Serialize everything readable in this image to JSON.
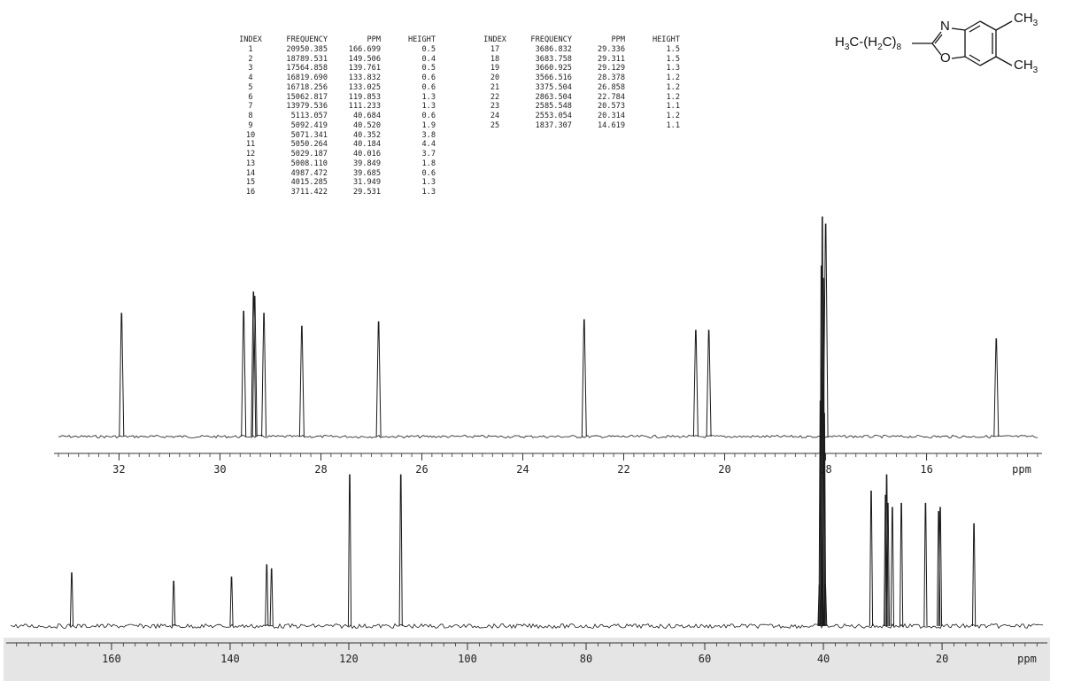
{
  "peak_table": {
    "headers": {
      "index": "INDEX",
      "frequency": "FREQUENCY",
      "ppm": "PPM",
      "height": "HEIGHT"
    },
    "left_rows": [
      {
        "index": "1",
        "frequency": "20950.385",
        "ppm": "166.699",
        "height": "0.5"
      },
      {
        "index": "2",
        "frequency": "18789.531",
        "ppm": "149.506",
        "height": "0.4"
      },
      {
        "index": "3",
        "frequency": "17564.858",
        "ppm": "139.761",
        "height": "0.5"
      },
      {
        "index": "4",
        "frequency": "16819.690",
        "ppm": "133.832",
        "height": "0.6"
      },
      {
        "index": "5",
        "frequency": "16718.256",
        "ppm": "133.025",
        "height": "0.6"
      },
      {
        "index": "6",
        "frequency": "15062.817",
        "ppm": "119.853",
        "height": "1.3"
      },
      {
        "index": "7",
        "frequency": "13979.536",
        "ppm": "111.233",
        "height": "1.3"
      },
      {
        "index": "8",
        "frequency": "5113.057",
        "ppm": "40.684",
        "height": "0.6"
      },
      {
        "index": "9",
        "frequency": "5092.419",
        "ppm": "40.520",
        "height": "1.9"
      },
      {
        "index": "10",
        "frequency": "5071.341",
        "ppm": "40.352",
        "height": "3.8"
      },
      {
        "index": "11",
        "frequency": "5050.264",
        "ppm": "40.184",
        "height": "4.4"
      },
      {
        "index": "12",
        "frequency": "5029.187",
        "ppm": "40.016",
        "height": "3.7"
      },
      {
        "index": "13",
        "frequency": "5008.110",
        "ppm": "39.849",
        "height": "1.8"
      },
      {
        "index": "14",
        "frequency": "4987.472",
        "ppm": "39.685",
        "height": "0.6"
      },
      {
        "index": "15",
        "frequency": "4015.285",
        "ppm": "31.949",
        "height": "1.3"
      },
      {
        "index": "16",
        "frequency": "3711.422",
        "ppm": "29.531",
        "height": "1.3"
      }
    ],
    "right_rows": [
      {
        "index": "17",
        "frequency": "3686.832",
        "ppm": "29.336",
        "height": "1.5"
      },
      {
        "index": "18",
        "frequency": "3683.758",
        "ppm": "29.311",
        "height": "1.5"
      },
      {
        "index": "19",
        "frequency": "3660.925",
        "ppm": "29.129",
        "height": "1.3"
      },
      {
        "index": "20",
        "frequency": "3566.516",
        "ppm": "28.378",
        "height": "1.2"
      },
      {
        "index": "21",
        "frequency": "3375.504",
        "ppm": "26.858",
        "height": "1.2"
      },
      {
        "index": "22",
        "frequency": "2863.504",
        "ppm": "22.784",
        "height": "1.2"
      },
      {
        "index": "23",
        "frequency": "2585.548",
        "ppm": "20.573",
        "height": "1.1"
      },
      {
        "index": "24",
        "frequency": "2553.054",
        "ppm": "20.314",
        "height": "1.2"
      },
      {
        "index": "25",
        "frequency": "1837.307",
        "ppm": "14.619",
        "height": "1.1"
      }
    ]
  },
  "structure": {
    "left_group_text": "H3C-(H2C)8",
    "atom_n": "N",
    "atom_o": "O",
    "methyl_top": "CH3",
    "methyl_bottom": "CH3"
  },
  "chart_data": [
    {
      "type": "line",
      "name_role": "expanded-spectrum",
      "xlabel": "ppm",
      "x_reversed": true,
      "xlim": [
        33.2,
        13.8
      ],
      "tick_labels": [
        "32",
        "30",
        "28",
        "26",
        "24",
        "22",
        "20",
        "18",
        "16"
      ],
      "tick_values": [
        32,
        30,
        28,
        26,
        24,
        22,
        20,
        18,
        16
      ],
      "peaks": [
        {
          "ppm": 31.949,
          "intensity": 0.58
        },
        {
          "ppm": 29.531,
          "intensity": 0.59
        },
        {
          "ppm": 29.336,
          "intensity": 0.68
        },
        {
          "ppm": 29.311,
          "intensity": 0.66
        },
        {
          "ppm": 29.129,
          "intensity": 0.58
        },
        {
          "ppm": 28.378,
          "intensity": 0.52
        },
        {
          "ppm": 26.858,
          "intensity": 0.54
        },
        {
          "ppm": 22.784,
          "intensity": 0.55
        },
        {
          "ppm": 20.573,
          "intensity": 0.5
        },
        {
          "ppm": 20.314,
          "intensity": 0.5
        },
        {
          "ppm": 18.0,
          "intensity": 1.0
        },
        {
          "ppm": 14.619,
          "intensity": 0.46
        }
      ]
    },
    {
      "type": "line",
      "name_role": "full-spectrum",
      "xlabel": "ppm",
      "x_reversed": true,
      "xlim": [
        177,
        3
      ],
      "tick_labels": [
        "160",
        "140",
        "120",
        "100",
        "80",
        "60",
        "40",
        "20"
      ],
      "tick_values": [
        160,
        140,
        120,
        100,
        80,
        60,
        40,
        20
      ],
      "peaks": [
        {
          "ppm": 166.699,
          "intensity": 0.13
        },
        {
          "ppm": 149.506,
          "intensity": 0.11
        },
        {
          "ppm": 139.761,
          "intensity": 0.12
        },
        {
          "ppm": 133.832,
          "intensity": 0.15
        },
        {
          "ppm": 133.025,
          "intensity": 0.14
        },
        {
          "ppm": 119.853,
          "intensity": 0.37
        },
        {
          "ppm": 111.233,
          "intensity": 0.37
        },
        {
          "ppm": 40.684,
          "intensity": 0.1
        },
        {
          "ppm": 40.52,
          "intensity": 0.55
        },
        {
          "ppm": 40.352,
          "intensity": 0.88
        },
        {
          "ppm": 40.184,
          "intensity": 1.0
        },
        {
          "ppm": 40.016,
          "intensity": 0.85
        },
        {
          "ppm": 39.849,
          "intensity": 0.52
        },
        {
          "ppm": 39.685,
          "intensity": 0.1
        },
        {
          "ppm": 31.949,
          "intensity": 0.33
        },
        {
          "ppm": 29.531,
          "intensity": 0.32
        },
        {
          "ppm": 29.336,
          "intensity": 0.37
        },
        {
          "ppm": 29.129,
          "intensity": 0.3
        },
        {
          "ppm": 28.378,
          "intensity": 0.29
        },
        {
          "ppm": 26.858,
          "intensity": 0.3
        },
        {
          "ppm": 22.784,
          "intensity": 0.3
        },
        {
          "ppm": 20.573,
          "intensity": 0.28
        },
        {
          "ppm": 20.314,
          "intensity": 0.29
        },
        {
          "ppm": 14.619,
          "intensity": 0.25
        }
      ]
    }
  ],
  "colors": {
    "trace": "#1a1a1a",
    "axis": "#333333",
    "band": "#cfcfcf"
  }
}
